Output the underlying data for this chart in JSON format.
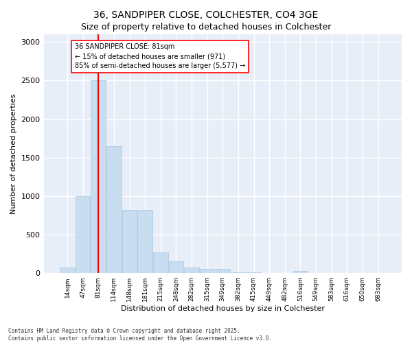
{
  "title": "36, SANDPIPER CLOSE, COLCHESTER, CO4 3GE",
  "subtitle": "Size of property relative to detached houses in Colchester",
  "xlabel": "Distribution of detached houses by size in Colchester",
  "ylabel": "Number of detached properties",
  "categories": [
    "14sqm",
    "47sqm",
    "81sqm",
    "114sqm",
    "148sqm",
    "181sqm",
    "215sqm",
    "248sqm",
    "282sqm",
    "315sqm",
    "349sqm",
    "382sqm",
    "415sqm",
    "449sqm",
    "482sqm",
    "516sqm",
    "549sqm",
    "583sqm",
    "616sqm",
    "650sqm",
    "683sqm"
  ],
  "values": [
    75,
    1000,
    2500,
    1650,
    820,
    820,
    270,
    155,
    70,
    55,
    55,
    10,
    10,
    0,
    0,
    25,
    0,
    0,
    0,
    0,
    0
  ],
  "bar_color": "#c9ddf0",
  "bar_edge_color": "#a8c4e0",
  "vline_x_index": 2,
  "vline_color": "red",
  "annotation_text": "36 SANDPIPER CLOSE: 81sqm\n← 15% of detached houses are smaller (971)\n85% of semi-detached houses are larger (5,577) →",
  "annotation_box_color": "white",
  "annotation_box_edge_color": "red",
  "ylim": [
    0,
    3100
  ],
  "yticks": [
    0,
    500,
    1000,
    1500,
    2000,
    2500,
    3000
  ],
  "footnote": "Contains HM Land Registry data © Crown copyright and database right 2025.\nContains public sector information licensed under the Open Government Licence v3.0.",
  "bg_color": "#ffffff",
  "plot_bg_color": "#e8eef8",
  "grid_color": "#ffffff",
  "title_fontsize": 10,
  "subtitle_fontsize": 9
}
